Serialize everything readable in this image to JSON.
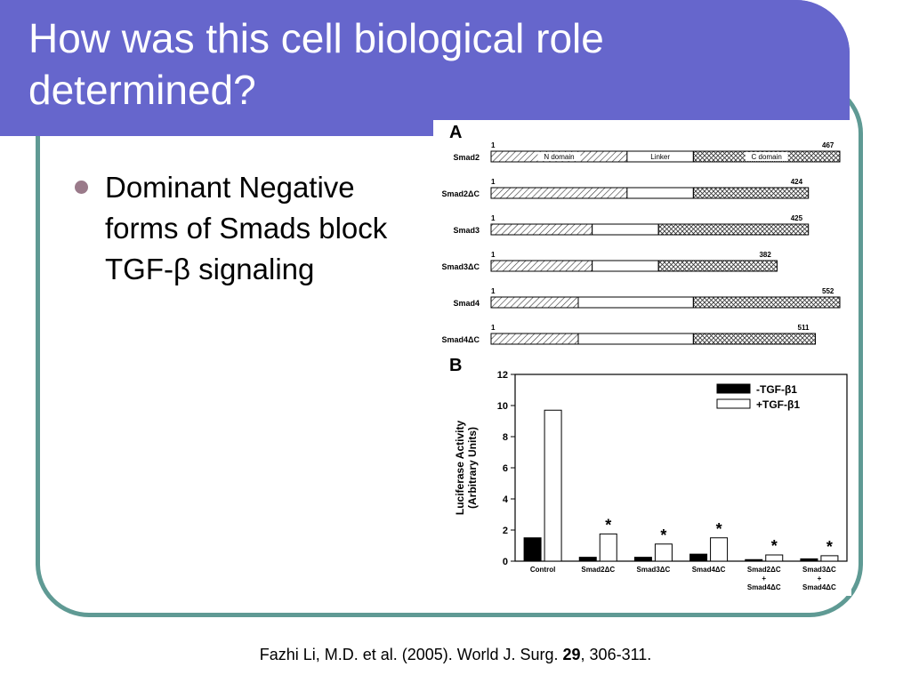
{
  "slide": {
    "title_line1": "How was this cell biological role",
    "title_line2": "determined?",
    "bullet": "Dominant Negative forms of Smads block TGF-β signaling",
    "citation_pre": "Fazhi Li, M.D. et al. (2005). World J. Surg. ",
    "citation_volume": "29",
    "citation_post": ", 306-311."
  },
  "figure_a": {
    "panel_label": "A",
    "start_label": "1",
    "domain_labels": {
      "n": "N domain",
      "linker": "Linker",
      "c": "C domain"
    },
    "constructs": [
      {
        "name": "Smad2",
        "length": "467",
        "n_end": 0.39,
        "l_end": 0.58,
        "c_end": 1.0
      },
      {
        "name": "Smad2ΔC",
        "length": "424",
        "n_end": 0.39,
        "l_end": 0.58,
        "c_end": 0.91
      },
      {
        "name": "Smad3",
        "length": "425",
        "n_end": 0.29,
        "l_end": 0.48,
        "c_end": 0.91
      },
      {
        "name": "Smad3ΔC",
        "length": "382",
        "n_end": 0.29,
        "l_end": 0.48,
        "c_end": 0.82
      },
      {
        "name": "Smad4",
        "length": "552",
        "n_end": 0.25,
        "l_end": 0.58,
        "c_end": 1.0
      },
      {
        "name": "Smad4ΔC",
        "length": "511",
        "n_end": 0.25,
        "l_end": 0.58,
        "c_end": 0.93
      }
    ]
  },
  "chart_data": {
    "type": "bar",
    "panel_label": "B",
    "categories": [
      "Control",
      "Smad2ΔC",
      "Smad3ΔC",
      "Smad4ΔC",
      "Smad2ΔC + Smad4ΔC",
      "Smad3ΔC + Smad4ΔC"
    ],
    "category_lines": [
      [
        "Control"
      ],
      [
        "Smad2ΔC"
      ],
      [
        "Smad3ΔC"
      ],
      [
        "Smad4ΔC"
      ],
      [
        "Smad2ΔC",
        "+",
        "Smad4ΔC"
      ],
      [
        "Smad3ΔC",
        "+",
        "Smad4ΔC"
      ]
    ],
    "series": [
      {
        "name": "-TGF-β1",
        "color": "#000000",
        "values": [
          1.5,
          0.25,
          0.25,
          0.45,
          0.1,
          0.15
        ]
      },
      {
        "name": "+TGF-β1",
        "color": "#ffffff",
        "values": [
          9.7,
          1.75,
          1.1,
          1.5,
          0.4,
          0.35
        ]
      }
    ],
    "significance": [
      false,
      true,
      true,
      true,
      true,
      true
    ],
    "ylabel_line1": "Luciferase Activity",
    "ylabel_line2": "(Arbitrary Units)",
    "ylim": [
      0,
      12
    ],
    "yticks": [
      0,
      2,
      4,
      6,
      8,
      10,
      12
    ],
    "legend_position": "top-right"
  }
}
